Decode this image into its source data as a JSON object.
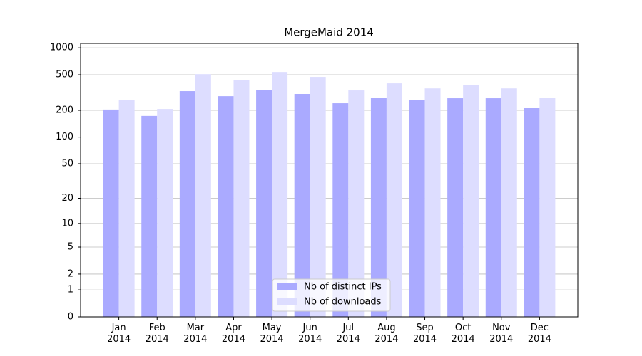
{
  "chart_data": {
    "type": "bar",
    "title": "MergeMaid 2014",
    "yscale": "log1p",
    "categories": [
      "Jan\n2014",
      "Feb\n2014",
      "Mar\n2014",
      "Apr\n2014",
      "May\n2014",
      "Jun\n2014",
      "Jul\n2014",
      "Aug\n2014",
      "Sep\n2014",
      "Oct\n2014",
      "Nov\n2014",
      "Dec\n2014"
    ],
    "series": [
      {
        "name": "Nb of distinct IPs",
        "color": "#aaaaff",
        "values": [
          204,
          173,
          328,
          288,
          340,
          305,
          240,
          278,
          263,
          273,
          273,
          215
        ]
      },
      {
        "name": "Nb of downloads",
        "color": "#ddddff",
        "values": [
          263,
          207,
          508,
          440,
          537,
          473,
          334,
          401,
          352,
          386,
          352,
          278
        ]
      }
    ],
    "ylim": [
      0,
      1120
    ],
    "yticks": [
      0,
      1,
      2,
      5,
      10,
      20,
      50,
      100,
      200,
      500,
      1000
    ],
    "grid": true,
    "legend": "lower center"
  }
}
